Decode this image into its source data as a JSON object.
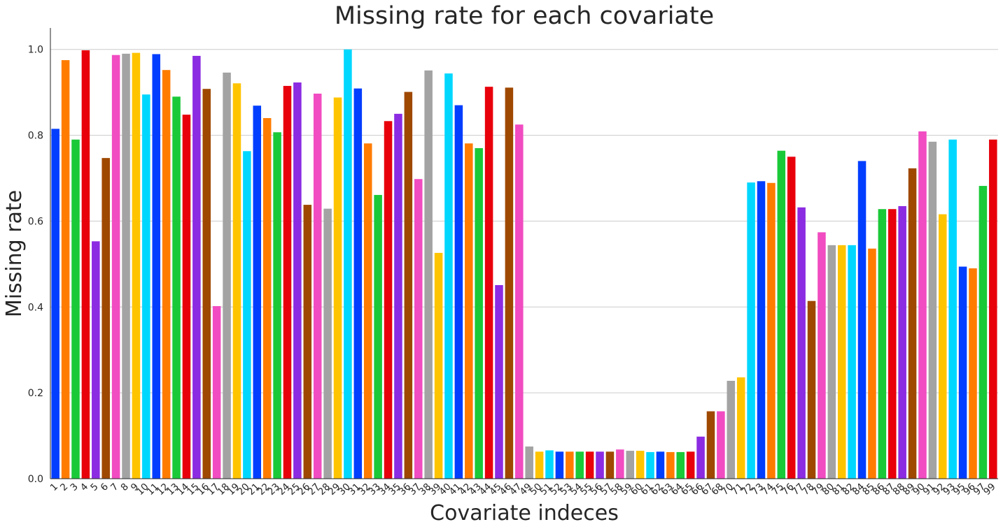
{
  "chart_data": {
    "type": "bar",
    "title": "Missing rate for each covariate",
    "xlabel": "Covariate indeces",
    "ylabel": "Missing rate",
    "ylim": [
      0,
      1.05
    ],
    "yticks": [
      "0.0",
      "0.2",
      "0.4",
      "0.6",
      "0.8",
      "1.0"
    ],
    "grid": "horizontal",
    "categories": [
      "1",
      "2",
      "3",
      "4",
      "5",
      "6",
      "7",
      "8",
      "9",
      "10",
      "11",
      "12",
      "13",
      "14",
      "15",
      "16",
      "17",
      "18",
      "19",
      "20",
      "21",
      "22",
      "23",
      "24",
      "25",
      "26",
      "27",
      "28",
      "29",
      "30",
      "31",
      "32",
      "33",
      "34",
      "35",
      "36",
      "37",
      "38",
      "39",
      "40",
      "41",
      "42",
      "43",
      "44",
      "45",
      "46",
      "47",
      "49",
      "50",
      "51",
      "52",
      "53",
      "54",
      "55",
      "56",
      "57",
      "58",
      "59",
      "60",
      "61",
      "62",
      "63",
      "64",
      "65",
      "66",
      "67",
      "68",
      "70",
      "71",
      "72",
      "73",
      "74",
      "75",
      "76",
      "77",
      "78",
      "79",
      "80",
      "81",
      "82",
      "84",
      "85",
      "86",
      "87",
      "88",
      "89",
      "90",
      "91",
      "92",
      "93",
      "95",
      "96",
      "97",
      "99"
    ],
    "values": [
      0.815,
      0.975,
      0.79,
      0.998,
      0.553,
      0.747,
      0.987,
      0.99,
      0.992,
      0.895,
      0.989,
      0.952,
      0.89,
      0.848,
      0.985,
      0.908,
      0.402,
      0.946,
      0.921,
      0.763,
      0.869,
      0.84,
      0.807,
      0.915,
      0.923,
      0.638,
      0.897,
      0.629,
      0.888,
      1.0,
      0.909,
      0.781,
      0.661,
      0.833,
      0.85,
      0.901,
      0.698,
      0.951,
      0.526,
      0.944,
      0.87,
      0.781,
      0.77,
      0.913,
      0.451,
      0.911,
      0.825,
      0.075,
      0.063,
      0.066,
      0.063,
      0.063,
      0.063,
      0.063,
      0.063,
      0.063,
      0.068,
      0.065,
      0.065,
      0.062,
      0.063,
      0.062,
      0.062,
      0.063,
      0.098,
      0.157,
      0.157,
      0.228,
      0.236,
      0.69,
      0.693,
      0.689,
      0.764,
      0.75,
      0.632,
      0.414,
      0.574,
      0.544,
      0.544,
      0.544,
      0.74,
      0.536,
      0.628,
      0.628,
      0.635,
      0.723,
      0.809,
      0.785,
      0.616,
      0.79,
      0.494,
      0.49,
      0.682,
      0.79
    ],
    "palette": [
      "#023eff",
      "#ff7c00",
      "#1ac938",
      "#e8000b",
      "#8b2be2",
      "#9f4800",
      "#f14cc1",
      "#a3a3a3",
      "#ffc400",
      "#00d7ff"
    ]
  }
}
